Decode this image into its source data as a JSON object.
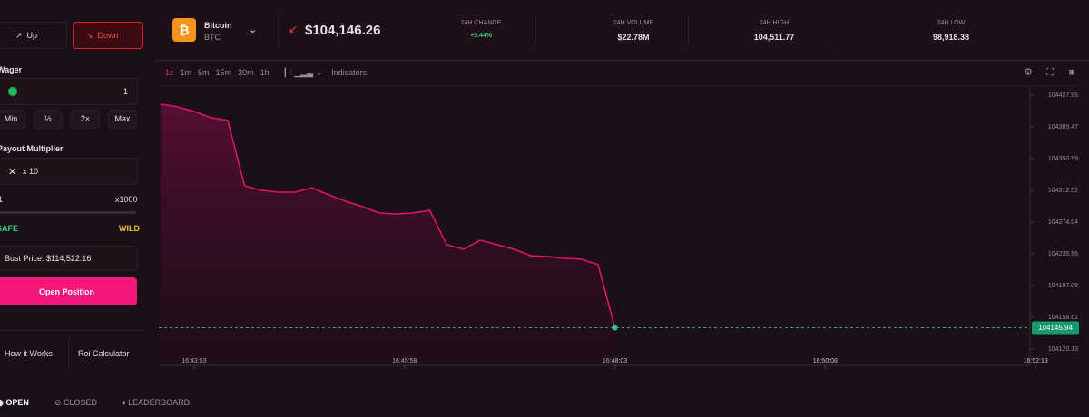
{
  "side_buttons": {
    "up": "Up",
    "down": "Down"
  },
  "asset": {
    "name": "Bitcoin",
    "ticker": "BTC",
    "price": "$104,146.26"
  },
  "stats": [
    {
      "label": "24H CHANGE",
      "value": "+3.44%"
    },
    {
      "label": "24H VOLUME",
      "value": "$22.78M"
    },
    {
      "label": "24H HIGH",
      "value": "104,511.77"
    },
    {
      "label": "24H LOW",
      "value": "98,918.38"
    }
  ],
  "left_panel": {
    "wager_label": "Wager",
    "wager": "1",
    "quick": [
      "Min",
      "½",
      "2×",
      "Max"
    ],
    "multiplier_label": "Payout Multiplier",
    "multiplier": "x 10",
    "range_min": "1",
    "range_max": "x1000",
    "safe": "SAFE",
    "wild": "WILD",
    "bust_price": "Bust Price: $114,522.16",
    "open_position": "Open Position",
    "how_it_works": "How it Works",
    "roi_calculator": "Roi Calculator"
  },
  "toolbar": {
    "intervals": [
      "1s",
      "1m",
      "5m",
      "15m",
      "30m",
      "1h"
    ],
    "indicators": "Indicators"
  },
  "tabs": [
    "OPEN",
    "CLOSED",
    "LEADERBOARD"
  ],
  "chart_data": {
    "type": "line",
    "color": "#e5136d",
    "x": [
      "16:43:33",
      "16:43:43",
      "16:43:53",
      "16:44:03",
      "16:44:13",
      "16:44:23",
      "16:44:33",
      "16:44:43",
      "16:44:53",
      "16:45:03",
      "16:45:13",
      "16:45:23",
      "16:45:33",
      "16:45:43",
      "16:45:53",
      "16:46:03",
      "16:46:13",
      "16:46:23",
      "16:46:33",
      "16:46:43",
      "16:46:53",
      "16:47:03",
      "16:47:13",
      "16:47:23",
      "16:47:33",
      "16:47:43",
      "16:47:53",
      "16:48:03"
    ],
    "values": [
      104416.96,
      104413.7,
      104408.2,
      104400.5,
      104397.2,
      104318.0,
      104312.5,
      104310.3,
      104310.3,
      104315.8,
      104307.0,
      104299.3,
      104292.7,
      104285.0,
      104283.9,
      104285.0,
      104288.3,
      104246.6,
      104241.1,
      104252.1,
      104246.6,
      104241.1,
      104233.3,
      104232.2,
      104230.0,
      104229.0,
      104222.4,
      104145.94
    ],
    "current_price": 104145.94,
    "xlim": [
      "16:43:32",
      "16:52:07"
    ],
    "xticks": [
      "16:43:53",
      "16:45:58",
      "16:48:03",
      "16:50:08",
      "16:52:13"
    ],
    "ylim": [
      104103.6,
      104438.9
    ],
    "yticks": [
      104120.13,
      104158.61,
      104197.08,
      104235.56,
      104274.04,
      104312.52,
      104350.99,
      104389.47,
      104427.95
    ]
  }
}
